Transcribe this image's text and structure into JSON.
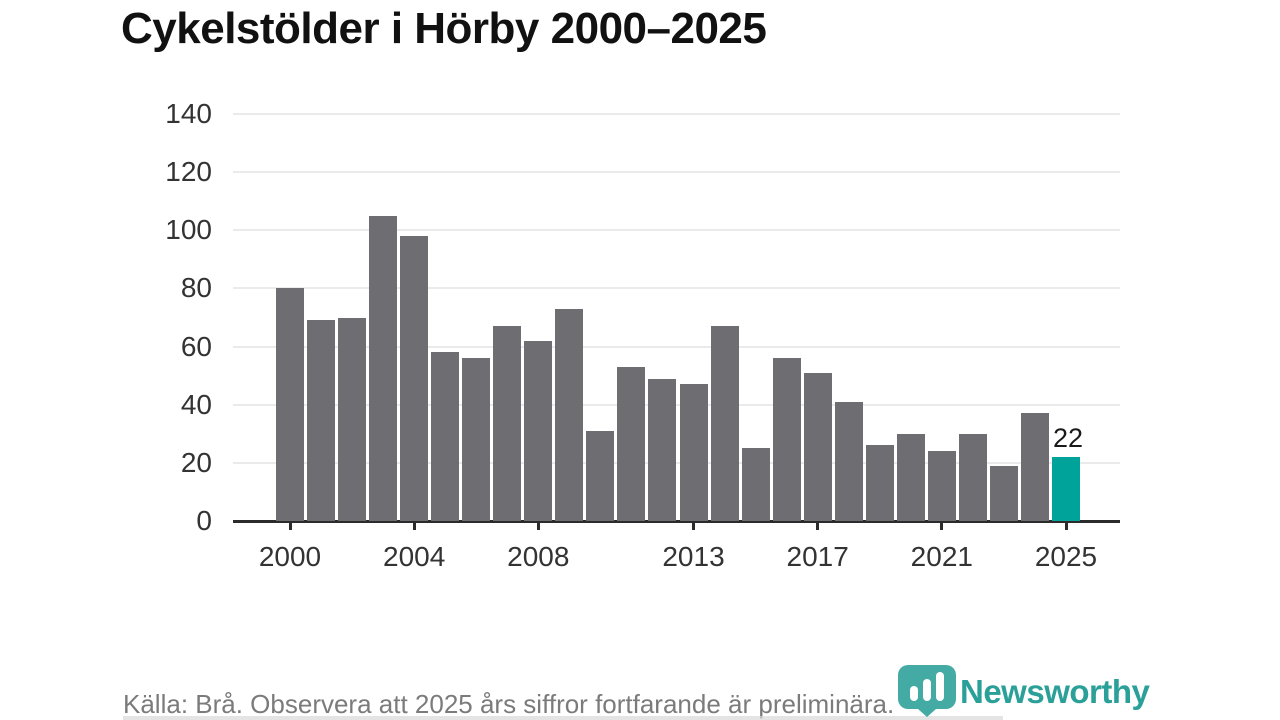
{
  "page": {
    "title": "Cykelstölder i Hörby 2000–2025",
    "footer": "Källa: Brå. Observera att 2025 års siffror fortfarande är preliminära.",
    "logo_text": "Newsworthy"
  },
  "colors": {
    "bar": "#6d6d72",
    "highlight": "#00a39a",
    "logo": "#2aa098",
    "grid": "#eaeaea",
    "axis_line": "#2b2b2b",
    "axis_text": "#333333",
    "footer_text": "#7b7b7b",
    "title_text": "#111111",
    "value_label": "#1a1a1a"
  },
  "chart_data": {
    "type": "bar",
    "title": "Cykelstölder i Hörby 2000–2025",
    "x": [
      2000,
      2001,
      2002,
      2003,
      2004,
      2005,
      2006,
      2007,
      2008,
      2009,
      2010,
      2011,
      2012,
      2013,
      2014,
      2015,
      2016,
      2017,
      2018,
      2019,
      2020,
      2021,
      2022,
      2023,
      2024,
      2025
    ],
    "values": [
      80,
      69,
      70,
      105,
      98,
      58,
      56,
      67,
      62,
      73,
      31,
      53,
      49,
      47,
      67,
      25,
      56,
      51,
      41,
      26,
      30,
      24,
      30,
      19,
      37,
      22
    ],
    "highlight_x": 2025,
    "highlight_label": "22",
    "ylim": [
      0,
      140
    ],
    "yticks": [
      0,
      20,
      40,
      60,
      80,
      100,
      120,
      140
    ],
    "xticks": [
      2000,
      2004,
      2008,
      2013,
      2017,
      2021,
      2025
    ],
    "grid": true,
    "legend": "none",
    "xlabel": "",
    "ylabel": ""
  }
}
